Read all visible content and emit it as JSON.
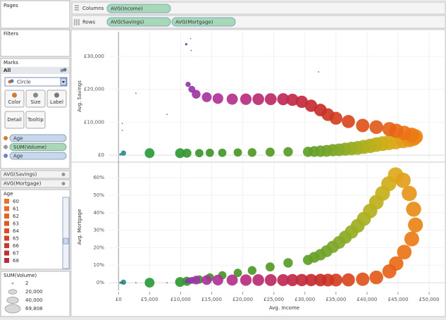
{
  "sidebar": {
    "pages": "Pages",
    "filters": "Filters",
    "marks": {
      "title": "Marks",
      "all": "All",
      "mark_type": "Circle",
      "buttons": [
        "Color",
        "Size",
        "Label",
        "Detail",
        "Tooltip"
      ],
      "pills": [
        "Age",
        "SUM(Volume)",
        "Age"
      ]
    },
    "shelf_cards": [
      "AVG(Savings)",
      "AVG(Mortgage)"
    ]
  },
  "shelves": {
    "columns_label": "Columns",
    "columns": [
      "AVG(Income)"
    ],
    "rows_label": "Rows",
    "rows": [
      "AVG(Savings)",
      "AVG(Mortgage)"
    ]
  },
  "legends": {
    "color": {
      "title": "Age",
      "items": [
        60,
        61,
        62,
        63,
        64,
        65,
        66,
        67,
        68
      ],
      "colors": [
        "#e8722a",
        "#e86a28",
        "#e46226",
        "#de5826",
        "#d84e28",
        "#d0442a",
        "#c83a2e",
        "#c03232",
        "#b82c36"
      ]
    },
    "size": {
      "title": "SUM(Volume)",
      "items": [
        2,
        {
          "value": 20000,
          "label": "20,000"
        },
        {
          "value": 40000,
          "label": "40,000"
        },
        {
          "value": 69808,
          "label": "69,808"
        }
      ]
    }
  },
  "chart_data": {
    "type": "bubble",
    "x_label": "Avg. Income",
    "xlim": [
      -1500,
      52600
    ],
    "xticks": [
      {
        "value": 0,
        "label": "£0"
      },
      {
        "value": 5000,
        "label": "£5,000"
      },
      {
        "value": 10000,
        "label": "£10,000"
      },
      {
        "value": 15000,
        "label": "£15,000"
      },
      {
        "value": 20000,
        "label": "£20,000"
      },
      {
        "value": 25000,
        "label": "£25,000"
      },
      {
        "value": 30000,
        "label": "£30,000"
      },
      {
        "value": 35000,
        "label": "£35,000"
      },
      {
        "value": 40000,
        "label": "£40,000"
      },
      {
        "value": 45000,
        "label": "£45,000"
      },
      {
        "value": 50000,
        "label": "£50,000"
      }
    ],
    "x": [
      300,
      800,
      5000,
      9900,
      11000,
      13000,
      14700,
      16700,
      19200,
      21500,
      24400,
      27300,
      30500,
      31500,
      32500,
      33500,
      34500,
      35500,
      36500,
      37500,
      38500,
      39500,
      40500,
      41500,
      42500,
      43500,
      44600,
      45800,
      46800,
      47500,
      47800,
      47200,
      46000,
      44700,
      43600,
      41500,
      39300,
      37000,
      35000,
      33700,
      32500,
      31000,
      29500,
      28000,
      26500,
      24500,
      22500,
      20500,
      18300,
      16000,
      14200,
      12500,
      11800,
      11200,
      10900,
      11600,
      11700,
      2800,
      7800,
      32200,
      600,
      600
    ],
    "size": [
      1500,
      8000,
      28000,
      28000,
      24000,
      20000,
      20000,
      20000,
      20000,
      22000,
      24000,
      26000,
      30000,
      34000,
      38000,
      41000,
      44000,
      47000,
      50000,
      53000,
      56000,
      58000,
      60000,
      62000,
      64000,
      66000,
      69808,
      68000,
      67000,
      66000,
      65000,
      64000,
      62000,
      60000,
      58000,
      55000,
      52000,
      50000,
      48000,
      47000,
      46000,
      44000,
      44000,
      43000,
      42000,
      41000,
      40000,
      38000,
      36000,
      33000,
      28000,
      22000,
      14000,
      8000,
      1500,
      300,
      100,
      50,
      50,
      50,
      50,
      50
    ],
    "colors": [
      "#1f7f8f",
      "#23908a",
      "#2a9a3a",
      "#2e9a32",
      "#36982e",
      "#3c962c",
      "#40962a",
      "#459628",
      "#4a9626",
      "#4f9826",
      "#549a26",
      "#5a9c26",
      "#5e9e28",
      "#64a028",
      "#6aa228",
      "#72a428",
      "#7aa628",
      "#82a828",
      "#8aaa26",
      "#94ac24",
      "#9eae22",
      "#a8b020",
      "#b2b01e",
      "#bcb01c",
      "#c6b01a",
      "#d0ae1a",
      "#dcaa1a",
      "#e2a01a",
      "#e69618",
      "#e88c18",
      "#ea8416",
      "#ea7c16",
      "#ea7416",
      "#e86c16",
      "#e66418",
      "#e25a1a",
      "#de521c",
      "#d8481e",
      "#d24020",
      "#cc3824",
      "#c63028",
      "#c42c30",
      "#c22a3c",
      "#c02a48",
      "#be2a56",
      "#bc2a64",
      "#ba2c72",
      "#b82e80",
      "#b4308c",
      "#b03296",
      "#a8349e",
      "#9e36a4",
      "#9438a8",
      "#8c3aaa",
      "#8030a8",
      "#7a3a8a",
      "#555555",
      "#444444",
      "#444444",
      "#444444",
      "#444444",
      "#444444"
    ],
    "panels": [
      {
        "y_label": "Avg. Savings",
        "ylim": [
          -1700,
          37500
        ],
        "yticks": [
          {
            "value": 0,
            "label": "£0"
          },
          {
            "value": 10000,
            "label": "£10,000"
          },
          {
            "value": 20000,
            "label": "£20,000"
          },
          {
            "value": 30000,
            "label": "£30,000"
          }
        ],
        "values": [
          200,
          600,
          600,
          600,
          600,
          600,
          700,
          700,
          800,
          800,
          900,
          1000,
          1000,
          1100,
          1200,
          1300,
          1500,
          1600,
          1800,
          2000,
          2200,
          2500,
          2800,
          3200,
          3500,
          3800,
          4100,
          4400,
          4700,
          5100,
          5600,
          6100,
          6700,
          7400,
          7900,
          8500,
          9000,
          10200,
          11200,
          12300,
          13700,
          15000,
          16200,
          16800,
          17000,
          17000,
          17000,
          17000,
          17000,
          17200,
          17600,
          18500,
          20000,
          21500,
          33700,
          35400,
          31800,
          18800,
          12400,
          25300,
          9600,
          7500
        ]
      },
      {
        "y_label": "Avg. Mortgage",
        "ylim": [
          -4.4,
          68.1
        ],
        "yticks": [
          {
            "value": 0,
            "label": "0%"
          },
          {
            "value": 10,
            "label": "10%"
          },
          {
            "value": 20,
            "label": "20%"
          },
          {
            "value": 30,
            "label": "30%"
          },
          {
            "value": 40,
            "label": "40%"
          },
          {
            "value": 50,
            "label": "50%"
          },
          {
            "value": 60,
            "label": "60%"
          }
        ],
        "values": [
          0,
          0.3,
          0,
          0.4,
          0.8,
          1.8,
          3.0,
          4.2,
          5.6,
          7.0,
          9.0,
          11.3,
          13.0,
          14.5,
          16.0,
          18.0,
          20.5,
          23.0,
          26.0,
          29.0,
          32.5,
          36.5,
          41.0,
          46.0,
          51.0,
          56.5,
          61.5,
          58.5,
          51.0,
          42.0,
          33.0,
          25.0,
          17.5,
          11.0,
          6.5,
          3.0,
          2.0,
          1.6,
          1.5,
          1.5,
          1.5,
          1.5,
          1.5,
          1.5,
          1.5,
          1.5,
          1.5,
          1.5,
          1.5,
          1.5,
          1.5,
          1.5,
          1.3,
          1.2,
          0.5,
          0.3,
          0.3,
          0,
          0,
          0,
          0,
          0
        ]
      }
    ]
  }
}
